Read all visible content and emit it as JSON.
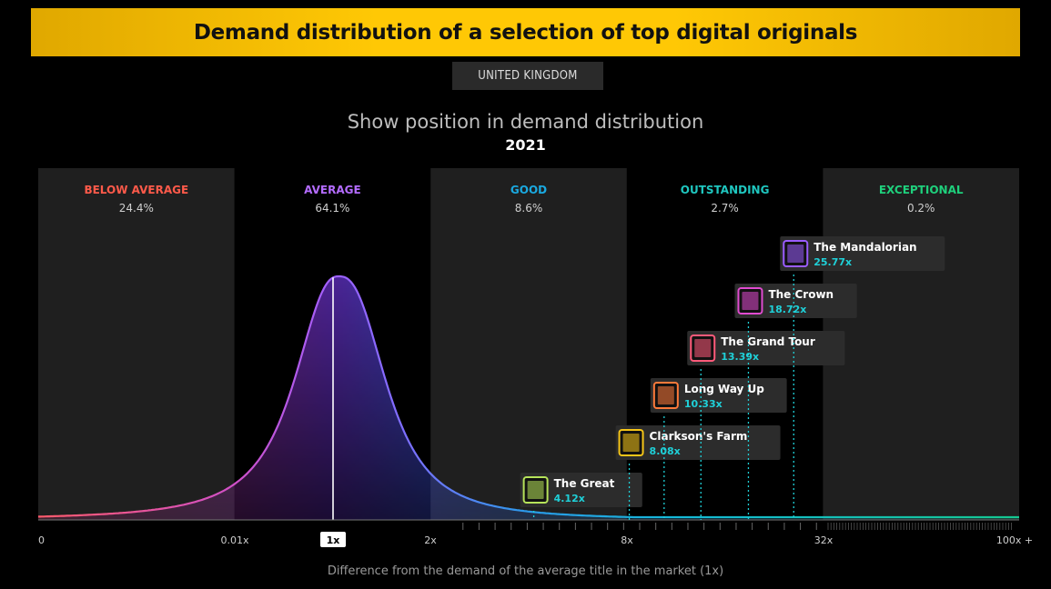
{
  "header": {
    "title": "Demand distribution of a selection of top digital originals",
    "region": "UNITED KINGDOM",
    "subtitle": "Show position in demand distribution",
    "year": "2021"
  },
  "chart_data": {
    "type": "area",
    "title": "Show position in demand distribution",
    "subtitle": "2021",
    "xlabel": "Difference from the demand of the average title in the market (1x)",
    "x_scale": "log",
    "x_ticks": [
      "0",
      "0.01x",
      "1x",
      "2x",
      "8x",
      "32x",
      "100x +"
    ],
    "average_marker": "1x",
    "bands": [
      {
        "name": "BELOW AVERAGE",
        "share": "24.4%",
        "color": "#ff5a4a"
      },
      {
        "name": "AVERAGE",
        "share": "64.1%",
        "color": "#b46cff"
      },
      {
        "name": "GOOD",
        "share": "8.6%",
        "color": "#1aa9e0"
      },
      {
        "name": "OUTSTANDING",
        "share": "2.7%",
        "color": "#1fc7c0"
      },
      {
        "name": "EXCEPTIONAL",
        "share": "0.2%",
        "color": "#1fd07c"
      }
    ],
    "shows": [
      {
        "name": "The Great",
        "multiplier": 4.12,
        "label": "4.12x",
        "icon_color": "#b6e35a"
      },
      {
        "name": "Clarkson's Farm",
        "multiplier": 8.08,
        "label": "8.08x",
        "icon_color": "#f5c518"
      },
      {
        "name": "Long Way Up",
        "multiplier": 10.33,
        "label": "10.33x",
        "icon_color": "#ff7a3a"
      },
      {
        "name": "The Grand Tour",
        "multiplier": 13.39,
        "label": "13.39x",
        "icon_color": "#ff5a7a"
      },
      {
        "name": "The Crown",
        "multiplier": 18.72,
        "label": "18.72x",
        "icon_color": "#e04bd0"
      },
      {
        "name": "The Mandalorian",
        "multiplier": 25.77,
        "label": "25.77x",
        "icon_color": "#9a5cff"
      }
    ]
  }
}
